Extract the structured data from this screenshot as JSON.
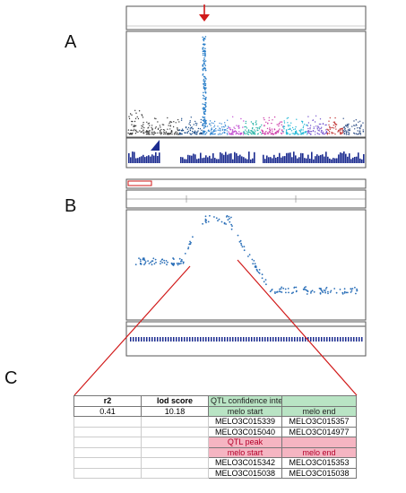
{
  "panels": {
    "a": "A",
    "b": "B",
    "c": "C"
  },
  "colors": {
    "marker_arrow": "#d11a1a",
    "manhattan_peak": "#2a7fc9",
    "coverage": "#1b2b8f",
    "zoom_lines": "#d11a1a",
    "qtl_ci_fill": "#b9e4c4",
    "qtl_peak_fill": "#f5b5c2",
    "qtl_peak_text": "#b3002a"
  },
  "table": {
    "r2_header": "r2",
    "lod_header": "lod score",
    "ci_title": "QTL confidence interval",
    "r2_value": "0.41",
    "lod_value": "10.18",
    "ci_start_label": "melo start",
    "ci_end_label": "melo end",
    "ci_rows": [
      {
        "start": "MELO3C015339",
        "end": "MELO3C015357"
      },
      {
        "start": "MELO3C015040",
        "end": "MELO3C014977"
      }
    ],
    "peak_title": "QTL peak",
    "peak_start_label": "melo start",
    "peak_end_label": "melo end",
    "peak_rows": [
      {
        "start": "MELO3C015342",
        "end": "MELO3C015353"
      },
      {
        "start": "MELO3C015038",
        "end": "MELO3C015038"
      }
    ]
  }
}
